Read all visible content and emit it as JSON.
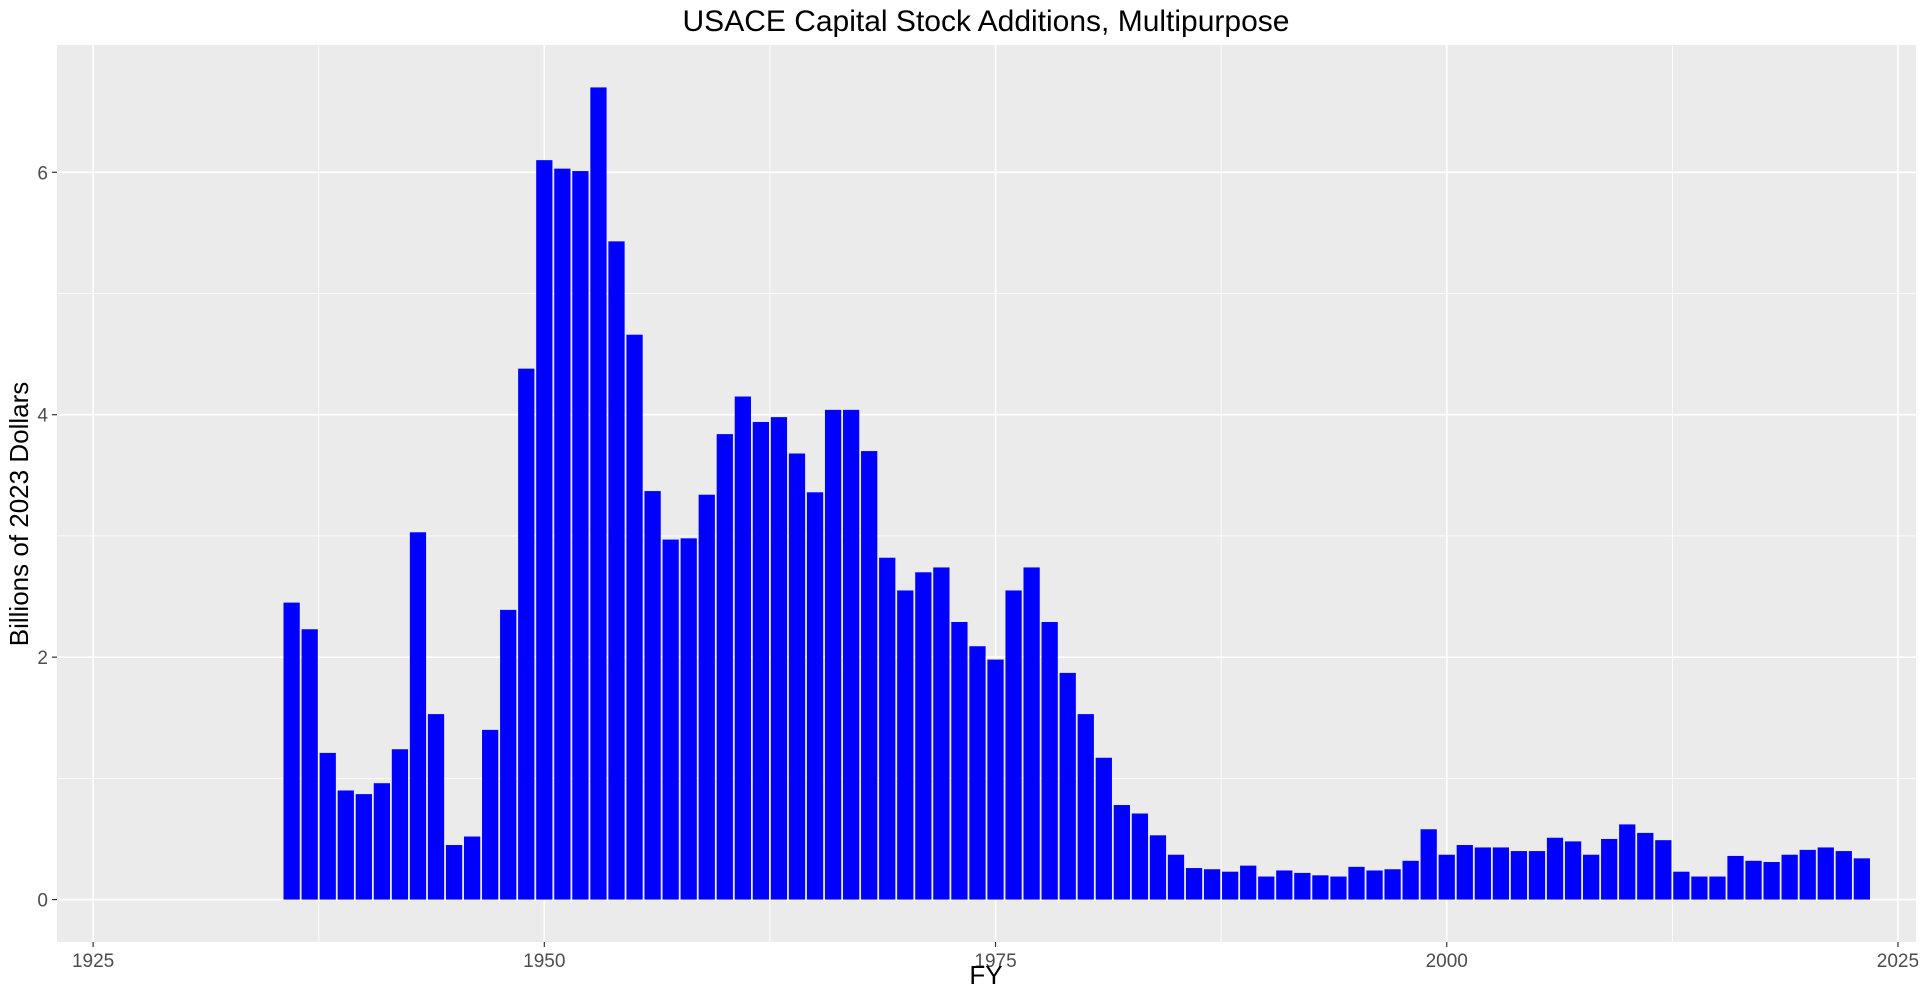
{
  "chart_data": {
    "type": "bar",
    "title": "USACE Capital Stock Additions, Multipurpose",
    "xlabel": "FY",
    "ylabel": "Billions of 2023 Dollars",
    "xlim": [
      1923,
      2026
    ],
    "ylim": [
      -0.35,
      7.05
    ],
    "x_ticks": [
      1925,
      1950,
      1975,
      2000,
      2025
    ],
    "y_ticks": [
      0,
      2,
      4,
      6
    ],
    "grid": true,
    "bar_color": "#0000FF",
    "panel_color": "#EBEBEB",
    "grid_color": "#FFFFFF",
    "x": [
      1936,
      1937,
      1938,
      1939,
      1940,
      1941,
      1942,
      1943,
      1944,
      1945,
      1946,
      1947,
      1948,
      1949,
      1950,
      1951,
      1952,
      1953,
      1954,
      1955,
      1956,
      1957,
      1958,
      1959,
      1960,
      1961,
      1962,
      1963,
      1964,
      1965,
      1966,
      1967,
      1968,
      1969,
      1970,
      1971,
      1972,
      1973,
      1974,
      1975,
      1976,
      1977,
      1978,
      1979,
      1980,
      1981,
      1982,
      1983,
      1984,
      1985,
      1986,
      1987,
      1988,
      1989,
      1990,
      1991,
      1992,
      1993,
      1994,
      1995,
      1996,
      1997,
      1998,
      1999,
      2000,
      2001,
      2002,
      2003,
      2004,
      2005,
      2006,
      2007,
      2008,
      2009,
      2010,
      2011,
      2012,
      2013,
      2014,
      2015,
      2016,
      2017,
      2018,
      2019,
      2020,
      2021,
      2022,
      2023
    ],
    "values": [
      2.45,
      2.23,
      1.21,
      0.9,
      0.87,
      0.96,
      1.24,
      3.03,
      1.53,
      0.45,
      0.52,
      1.4,
      2.39,
      4.38,
      6.1,
      6.03,
      6.01,
      6.7,
      5.43,
      4.66,
      3.37,
      2.97,
      2.98,
      3.34,
      3.84,
      4.15,
      3.94,
      3.98,
      3.68,
      3.36,
      4.04,
      4.04,
      3.7,
      2.82,
      2.55,
      2.7,
      2.74,
      2.29,
      2.09,
      1.98,
      2.55,
      2.74,
      2.29,
      1.87,
      1.53,
      1.17,
      0.78,
      0.71,
      0.53,
      0.37,
      0.26,
      0.25,
      0.23,
      0.28,
      0.19,
      0.24,
      0.22,
      0.2,
      0.19,
      0.27,
      0.24,
      0.25,
      0.32,
      0.58,
      0.37,
      0.45,
      0.43,
      0.43,
      0.4,
      0.4,
      0.51,
      0.48,
      0.37,
      0.5,
      0.62,
      0.55,
      0.49,
      0.23,
      0.19,
      0.19,
      0.36,
      0.32,
      0.31,
      0.37,
      0.41,
      0.43,
      0.4,
      0.34
    ]
  }
}
